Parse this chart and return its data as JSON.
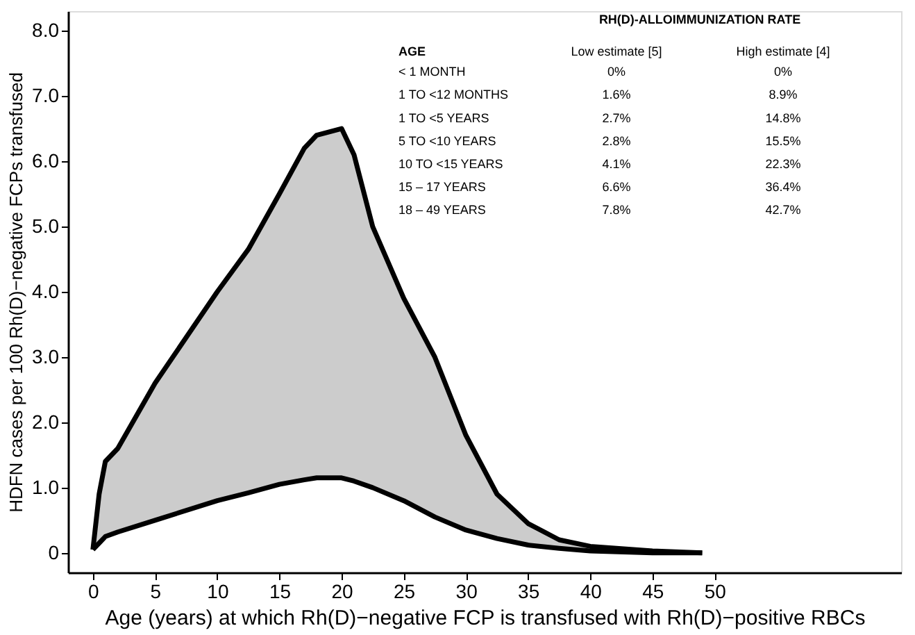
{
  "chart_data": {
    "type": "line",
    "xlabel": "Age (years) at which Rh(D)−negative FCP is transfused with Rh(D)−positive RBCs",
    "ylabel": "HDFN cases per 100 Rh(D)−negative FCPs transfused",
    "x": [
      0,
      0.5,
      1,
      2,
      5,
      10,
      12.5,
      15,
      17,
      18,
      20,
      21,
      22.5,
      25,
      27.5,
      30,
      32.5,
      35,
      37.5,
      40,
      45,
      49
    ],
    "series": [
      {
        "color": "#000000",
        "values": [
          0.05,
          0.9,
          1.4,
          1.6,
          2.6,
          4.0,
          4.65,
          5.5,
          6.2,
          6.4,
          6.5,
          6.1,
          5.0,
          3.9,
          3.0,
          1.8,
          0.9,
          0.45,
          0.2,
          0.1,
          0.03,
          0.0
        ]
      },
      {
        "color": "#000000",
        "values": [
          0.05,
          0.15,
          0.25,
          0.32,
          0.5,
          0.8,
          0.92,
          1.05,
          1.12,
          1.15,
          1.15,
          1.1,
          1.0,
          0.8,
          0.55,
          0.35,
          0.22,
          0.12,
          0.07,
          0.03,
          0.0,
          0.0
        ],
        "lower": [
          0.05,
          0.15,
          0.25,
          0.32,
          0.5,
          0.8,
          0.92,
          1.05,
          1.12,
          1.15,
          1.15,
          1.1,
          1.0,
          0.8,
          0.55,
          0.35,
          0.22,
          0.12,
          0.07,
          0.03,
          0.0,
          0.0
        ],
        "upper": [
          0.05,
          0.9,
          1.4,
          1.6,
          2.6,
          4.0,
          4.65,
          5.5,
          6.2,
          6.4,
          6.5,
          6.1,
          5.0,
          3.9,
          3.0,
          1.8,
          0.9,
          0.45,
          0.2,
          0.1,
          0.03,
          0.0
        ]
      }
    ],
    "xlim": [
      -2,
      65
    ],
    "xticks": [
      0,
      5,
      10,
      15,
      20,
      25,
      30,
      35,
      40,
      45,
      50
    ],
    "ylim": [
      -0.3,
      8.3
    ],
    "yticks": [
      0,
      {
        "value": 1,
        "label": "1.0"
      },
      {
        "value": 2,
        "label": "2.0"
      },
      {
        "value": 3,
        "label": "3.0"
      },
      {
        "value": 4,
        "label": "4.0"
      },
      {
        "value": 5,
        "label": "5.0"
      },
      {
        "value": 6,
        "label": "6.0"
      },
      {
        "value": 7,
        "label": "7.0"
      },
      {
        "value": 8,
        "label": "8.0"
      }
    ],
    "grid": false,
    "annotations": [
      "RH(D)-ALLOIMMUNIZATION RATE",
      "AGE",
      "Low estimate [5]",
      "High estimate [4]",
      "< 1 MONTH",
      "0%",
      "0%",
      "1 TO <12 MONTHS",
      "1.6%",
      "8.9%",
      "1 TO <5 YEARS",
      "2.7%",
      "14.8%",
      "5 TO <10 YEARS",
      "2.8%",
      "15.5%",
      "10 TO <15 YEARS",
      "4.1%",
      "22.3%",
      "15 – 17 YEARS",
      "6.6%",
      "36.4%",
      "18 – 49 YEARS",
      "7.8%",
      "42.7%"
    ]
  }
}
